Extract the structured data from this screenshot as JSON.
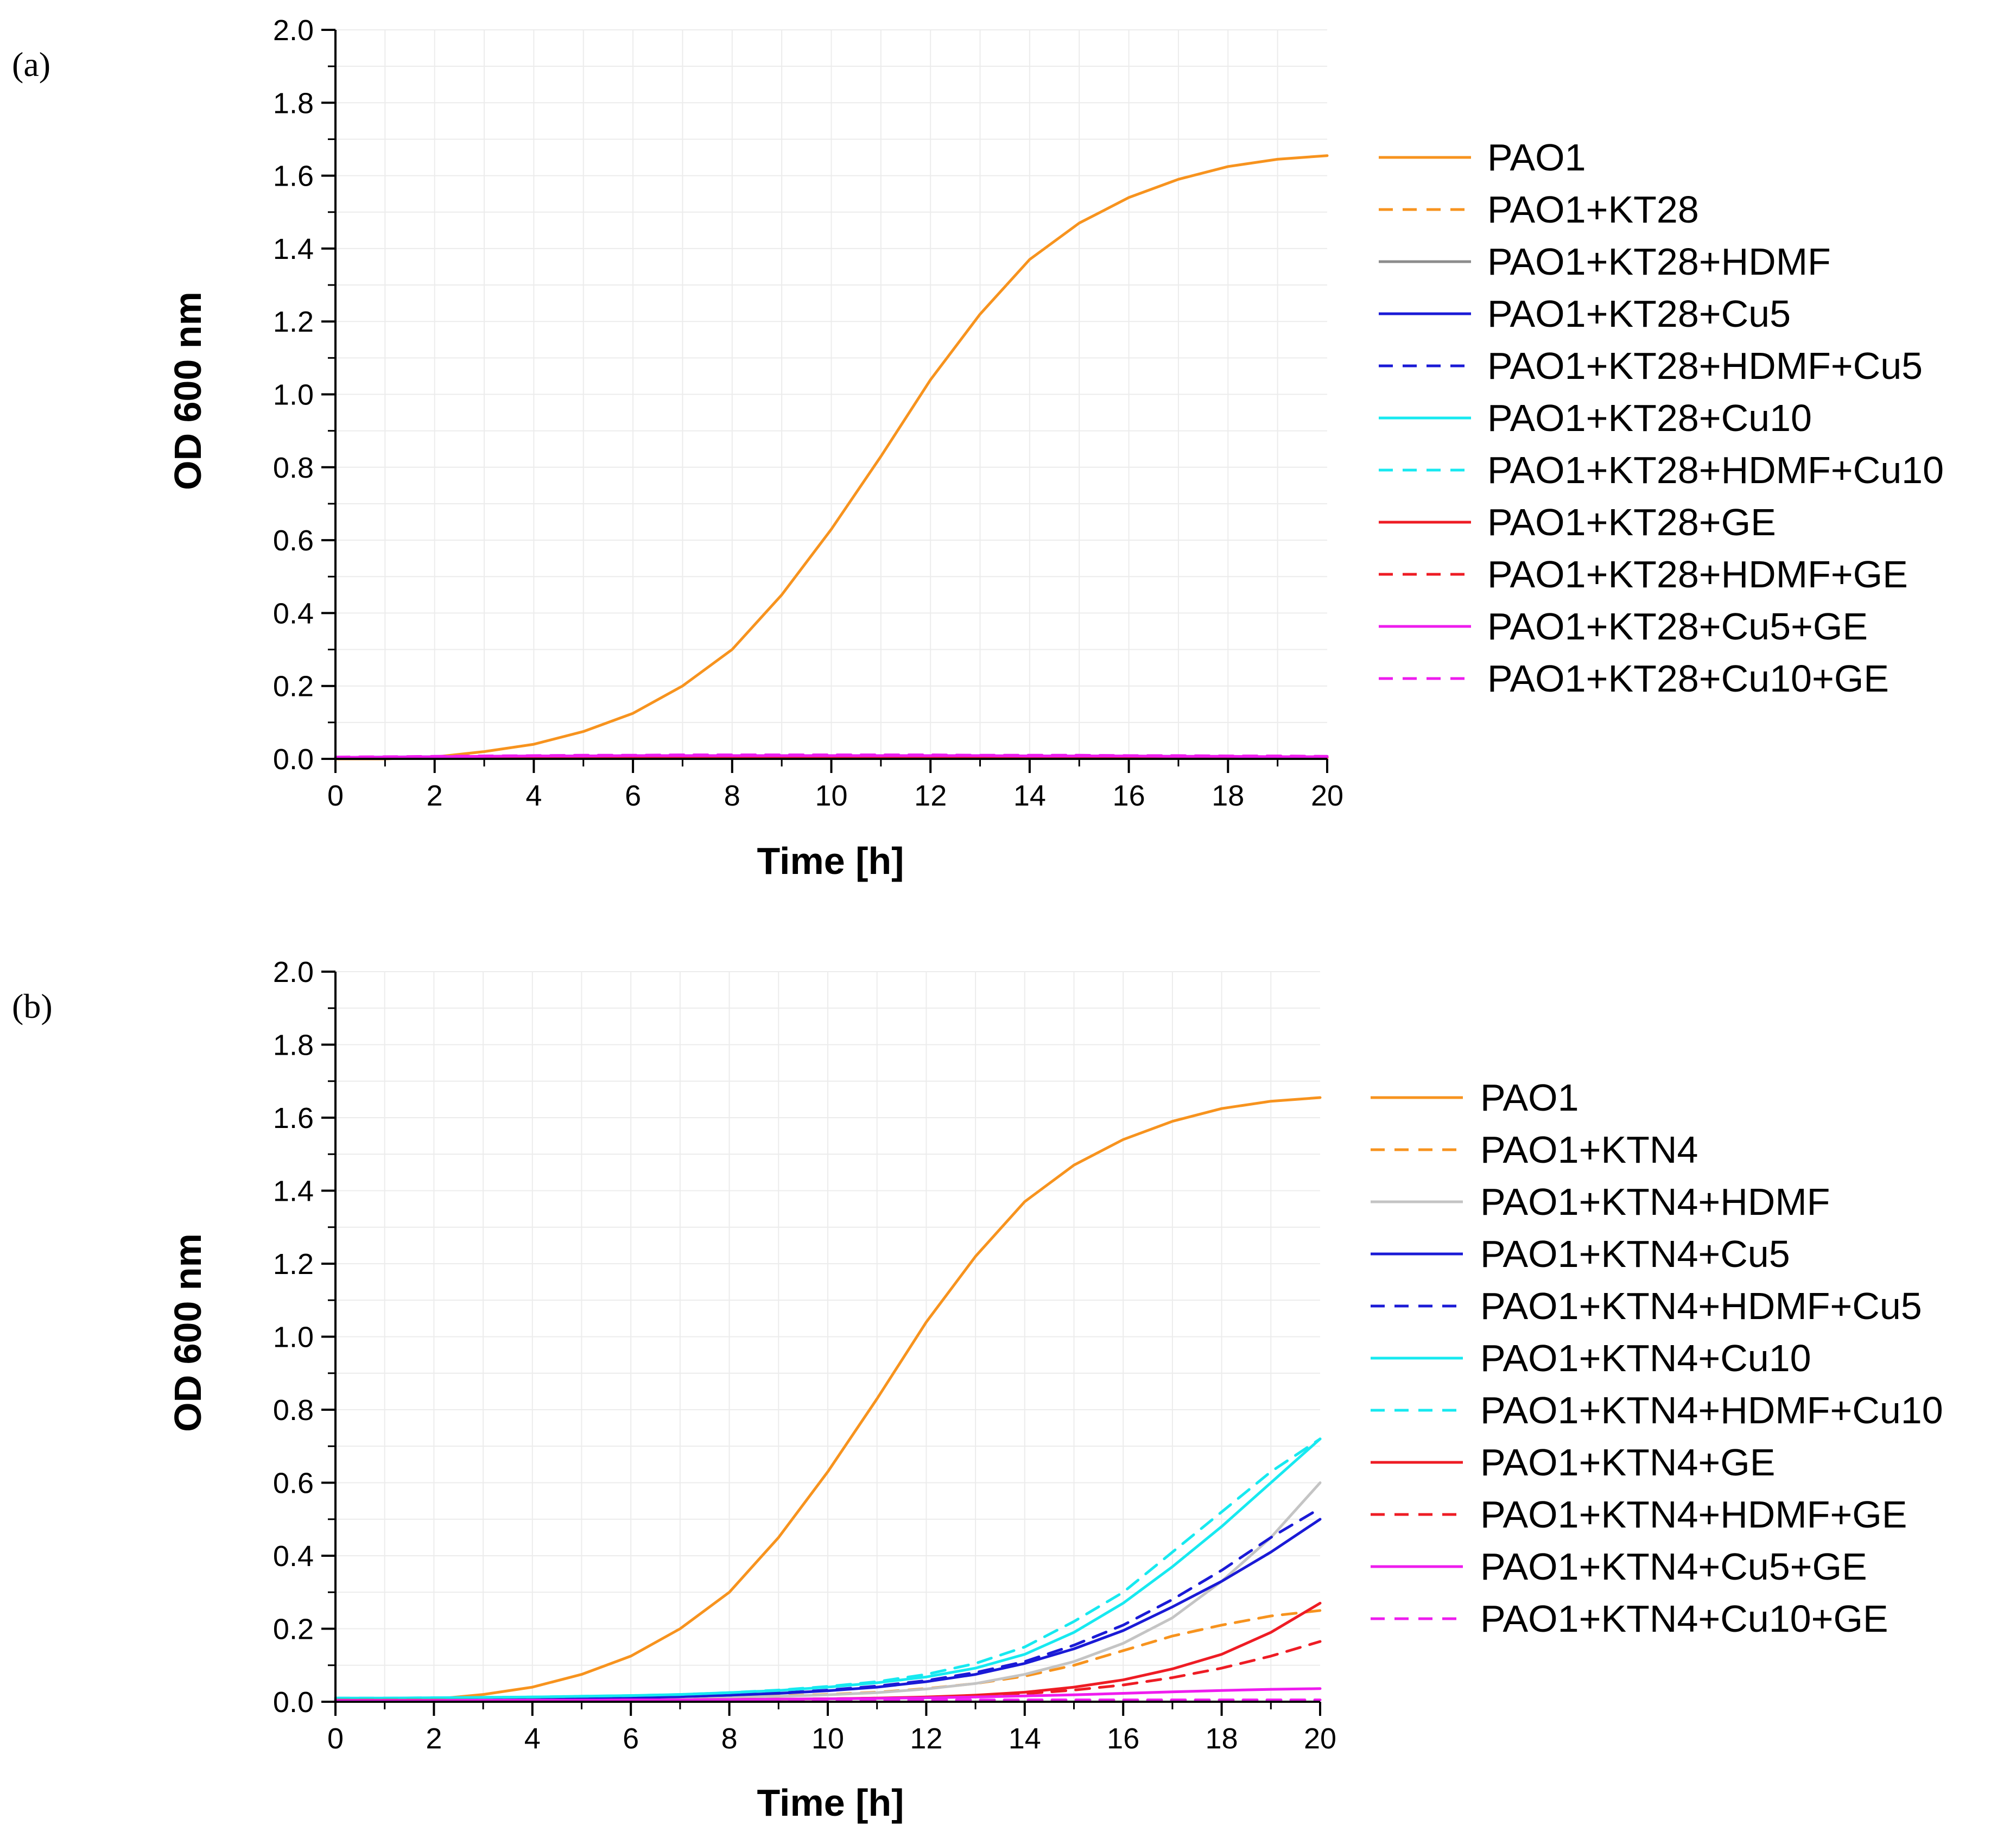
{
  "figure": {
    "panels": [
      {
        "id": "a",
        "label": "(a)"
      },
      {
        "id": "b",
        "label": "(b)"
      }
    ]
  },
  "colors": {
    "orange": "#f7931e",
    "gray_a": "#8c8c8c",
    "gray_b": "#c4c4c4",
    "blue": "#1a1ad6",
    "cyan": "#17e9f0",
    "red": "#ee1c24",
    "magenta": "#ee1cee",
    "grid": "#ececec",
    "axis": "#000000"
  },
  "chart_data": [
    {
      "type": "line",
      "panel": "a",
      "title": "",
      "xlabel": "Time [h]",
      "ylabel": "OD 600 nm",
      "xlim": [
        0,
        20
      ],
      "ylim": [
        0,
        2.0
      ],
      "xticks": [
        0,
        2,
        4,
        6,
        8,
        10,
        12,
        14,
        16,
        18,
        20
      ],
      "xtick_labels": [
        "0",
        "2",
        "4",
        "6",
        "8",
        "10",
        "12",
        "14",
        "16",
        "18",
        "20"
      ],
      "yticks": [
        0,
        0.2,
        0.4,
        0.6,
        0.8,
        1.0,
        1.2,
        1.4,
        1.6,
        1.8,
        2.0
      ],
      "ytick_labels": [
        "0.0",
        "0.2",
        "0.4",
        "0.6",
        "0.8",
        "1.0",
        "1.2",
        "1.4",
        "1.6",
        "1.8",
        "2.0"
      ],
      "grid": true,
      "legend_position": "right",
      "x": [
        0,
        1,
        2,
        3,
        4,
        5,
        6,
        7,
        8,
        9,
        10,
        11,
        12,
        13,
        14,
        15,
        16,
        17,
        18,
        19,
        20
      ],
      "series": [
        {
          "name": "PAO1",
          "color": "orange",
          "dash": false,
          "values": [
            0.0,
            0.0,
            0.005,
            0.02,
            0.04,
            0.075,
            0.125,
            0.2,
            0.3,
            0.45,
            0.63,
            0.83,
            1.04,
            1.22,
            1.37,
            1.47,
            1.54,
            1.59,
            1.625,
            1.645,
            1.655
          ]
        },
        {
          "name": "PAO1+KT28",
          "color": "orange",
          "dash": true,
          "values": [
            0.003,
            0.004,
            0.005,
            0.006,
            0.007,
            0.007,
            0.008,
            0.008,
            0.008,
            0.008,
            0.008,
            0.008,
            0.008,
            0.008,
            0.008,
            0.008,
            0.007,
            0.007,
            0.006,
            0.006,
            0.005
          ]
        },
        {
          "name": "PAO1+KT28+HDMF",
          "color": "gray_a",
          "dash": false,
          "values": [
            0.003,
            0.004,
            0.005,
            0.006,
            0.006,
            0.007,
            0.007,
            0.007,
            0.007,
            0.007,
            0.007,
            0.007,
            0.007,
            0.007,
            0.007,
            0.006,
            0.006,
            0.006,
            0.005,
            0.005,
            0.005
          ]
        },
        {
          "name": "PAO1+KT28+Cu5",
          "color": "blue",
          "dash": false,
          "values": [
            0.003,
            0.004,
            0.004,
            0.005,
            0.005,
            0.005,
            0.005,
            0.005,
            0.005,
            0.005,
            0.005,
            0.005,
            0.005,
            0.005,
            0.005,
            0.005,
            0.005,
            0.004,
            0.004,
            0.004,
            0.004
          ]
        },
        {
          "name": "PAO1+KT28+HDMF+Cu5",
          "color": "blue",
          "dash": true,
          "values": [
            0.003,
            0.004,
            0.005,
            0.005,
            0.006,
            0.006,
            0.006,
            0.006,
            0.006,
            0.006,
            0.006,
            0.006,
            0.006,
            0.006,
            0.006,
            0.006,
            0.005,
            0.005,
            0.005,
            0.005,
            0.005
          ]
        },
        {
          "name": "PAO1+KT28+Cu10",
          "color": "cyan",
          "dash": false,
          "values": [
            0.004,
            0.005,
            0.006,
            0.007,
            0.007,
            0.008,
            0.008,
            0.008,
            0.008,
            0.008,
            0.008,
            0.008,
            0.008,
            0.008,
            0.008,
            0.007,
            0.007,
            0.007,
            0.006,
            0.006,
            0.006
          ]
        },
        {
          "name": "PAO1+KT28+HDMF+Cu10",
          "color": "cyan",
          "dash": true,
          "values": [
            0.004,
            0.005,
            0.006,
            0.006,
            0.007,
            0.007,
            0.007,
            0.007,
            0.007,
            0.007,
            0.007,
            0.007,
            0.007,
            0.007,
            0.007,
            0.007,
            0.006,
            0.006,
            0.006,
            0.005,
            0.005
          ]
        },
        {
          "name": "PAO1+KT28+GE",
          "color": "red",
          "dash": false,
          "values": [
            0.003,
            0.003,
            0.004,
            0.004,
            0.005,
            0.005,
            0.005,
            0.005,
            0.005,
            0.005,
            0.005,
            0.005,
            0.005,
            0.005,
            0.005,
            0.005,
            0.004,
            0.004,
            0.004,
            0.004,
            0.004
          ]
        },
        {
          "name": "PAO1+KT28+HDMF+GE",
          "color": "red",
          "dash": true,
          "values": [
            0.003,
            0.004,
            0.004,
            0.005,
            0.005,
            0.006,
            0.006,
            0.006,
            0.006,
            0.006,
            0.006,
            0.006,
            0.006,
            0.006,
            0.006,
            0.005,
            0.005,
            0.005,
            0.005,
            0.004,
            0.004
          ]
        },
        {
          "name": "PAO1+KT28+Cu5+GE",
          "color": "magenta",
          "dash": false,
          "values": [
            0.004,
            0.005,
            0.006,
            0.007,
            0.008,
            0.008,
            0.009,
            0.009,
            0.009,
            0.009,
            0.009,
            0.009,
            0.009,
            0.009,
            0.008,
            0.008,
            0.008,
            0.007,
            0.007,
            0.006,
            0.006
          ]
        },
        {
          "name": "PAO1+KT28+Cu10+GE",
          "color": "magenta",
          "dash": true,
          "values": [
            0.005,
            0.006,
            0.007,
            0.008,
            0.009,
            0.01,
            0.01,
            0.011,
            0.011,
            0.011,
            0.011,
            0.011,
            0.011,
            0.01,
            0.01,
            0.01,
            0.009,
            0.009,
            0.008,
            0.008,
            0.007
          ]
        }
      ]
    },
    {
      "type": "line",
      "panel": "b",
      "title": "",
      "xlabel": "Time [h]",
      "ylabel": "OD 600 nm",
      "xlim": [
        0,
        20
      ],
      "ylim": [
        0,
        2.0
      ],
      "xticks": [
        0,
        2,
        4,
        6,
        8,
        10,
        12,
        14,
        16,
        18,
        20
      ],
      "xtick_labels": [
        "0",
        "2",
        "4",
        "6",
        "8",
        "10",
        "12",
        "14",
        "16",
        "18",
        "20"
      ],
      "yticks": [
        0,
        0.2,
        0.4,
        0.6,
        0.8,
        1.0,
        1.2,
        1.4,
        1.6,
        1.8,
        2.0
      ],
      "ytick_labels": [
        "0.0",
        "0.2",
        "0.4",
        "0.6",
        "0.8",
        "1.0",
        "1.2",
        "1.4",
        "1.6",
        "1.8",
        "2.0"
      ],
      "grid": true,
      "legend_position": "right",
      "x": [
        0,
        1,
        2,
        3,
        4,
        5,
        6,
        7,
        8,
        9,
        10,
        11,
        12,
        13,
        14,
        15,
        16,
        17,
        18,
        19,
        20
      ],
      "series": [
        {
          "name": "PAO1",
          "color": "orange",
          "dash": false,
          "values": [
            0.005,
            0.005,
            0.007,
            0.02,
            0.04,
            0.075,
            0.125,
            0.2,
            0.3,
            0.45,
            0.63,
            0.83,
            1.04,
            1.22,
            1.37,
            1.47,
            1.54,
            1.59,
            1.625,
            1.645,
            1.655
          ]
        },
        {
          "name": "PAO1+KTN4",
          "color": "orange",
          "dash": true,
          "values": [
            0.005,
            0.005,
            0.006,
            0.006,
            0.007,
            0.008,
            0.009,
            0.011,
            0.013,
            0.016,
            0.02,
            0.026,
            0.036,
            0.05,
            0.07,
            0.1,
            0.14,
            0.18,
            0.21,
            0.235,
            0.25
          ]
        },
        {
          "name": "PAO1+KTN4+HDMF",
          "color": "gray_b",
          "dash": false,
          "values": [
            0.005,
            0.005,
            0.005,
            0.006,
            0.006,
            0.007,
            0.008,
            0.01,
            0.012,
            0.015,
            0.019,
            0.025,
            0.035,
            0.05,
            0.075,
            0.11,
            0.16,
            0.23,
            0.33,
            0.45,
            0.6
          ]
        },
        {
          "name": "PAO1+KTN4+Cu5",
          "color": "blue",
          "dash": false,
          "values": [
            0.005,
            0.005,
            0.006,
            0.007,
            0.008,
            0.009,
            0.011,
            0.014,
            0.018,
            0.023,
            0.03,
            0.04,
            0.055,
            0.075,
            0.105,
            0.145,
            0.195,
            0.26,
            0.33,
            0.41,
            0.5
          ]
        },
        {
          "name": "PAO1+KTN4+HDMF+Cu5",
          "color": "blue",
          "dash": true,
          "values": [
            0.005,
            0.005,
            0.006,
            0.007,
            0.008,
            0.009,
            0.011,
            0.014,
            0.018,
            0.024,
            0.032,
            0.043,
            0.058,
            0.08,
            0.11,
            0.155,
            0.21,
            0.28,
            0.36,
            0.45,
            0.53
          ]
        },
        {
          "name": "PAO1+KTN4+Cu10",
          "color": "cyan",
          "dash": false,
          "values": [
            0.01,
            0.01,
            0.011,
            0.012,
            0.013,
            0.015,
            0.017,
            0.02,
            0.025,
            0.031,
            0.04,
            0.052,
            0.068,
            0.092,
            0.13,
            0.19,
            0.27,
            0.37,
            0.48,
            0.6,
            0.72
          ]
        },
        {
          "name": "PAO1+KTN4+HDMF+Cu10",
          "color": "cyan",
          "dash": true,
          "values": [
            0.01,
            0.01,
            0.011,
            0.012,
            0.013,
            0.015,
            0.017,
            0.02,
            0.025,
            0.032,
            0.042,
            0.055,
            0.075,
            0.105,
            0.15,
            0.22,
            0.3,
            0.41,
            0.52,
            0.63,
            0.72
          ]
        },
        {
          "name": "PAO1+KTN4+GE",
          "color": "red",
          "dash": false,
          "values": [
            0.004,
            0.004,
            0.004,
            0.004,
            0.004,
            0.004,
            0.005,
            0.005,
            0.006,
            0.007,
            0.008,
            0.01,
            0.013,
            0.018,
            0.026,
            0.04,
            0.06,
            0.09,
            0.13,
            0.19,
            0.27
          ]
        },
        {
          "name": "PAO1+KTN4+HDMF+GE",
          "color": "red",
          "dash": true,
          "values": [
            0.004,
            0.004,
            0.004,
            0.004,
            0.004,
            0.004,
            0.005,
            0.005,
            0.006,
            0.007,
            0.008,
            0.01,
            0.012,
            0.016,
            0.022,
            0.032,
            0.046,
            0.066,
            0.092,
            0.125,
            0.165
          ]
        },
        {
          "name": "PAO1+KTN4+Cu5+GE",
          "color": "magenta",
          "dash": false,
          "values": [
            0.003,
            0.003,
            0.003,
            0.004,
            0.004,
            0.004,
            0.005,
            0.005,
            0.006,
            0.007,
            0.008,
            0.009,
            0.011,
            0.013,
            0.016,
            0.019,
            0.023,
            0.027,
            0.031,
            0.034,
            0.036
          ]
        },
        {
          "name": "PAO1+KTN4+Cu10+GE",
          "color": "magenta",
          "dash": true,
          "values": [
            0.003,
            0.003,
            0.003,
            0.003,
            0.003,
            0.003,
            0.004,
            0.004,
            0.004,
            0.004,
            0.004,
            0.004,
            0.005,
            0.005,
            0.005,
            0.005,
            0.005,
            0.005,
            0.005,
            0.005,
            0.005
          ]
        }
      ]
    }
  ]
}
